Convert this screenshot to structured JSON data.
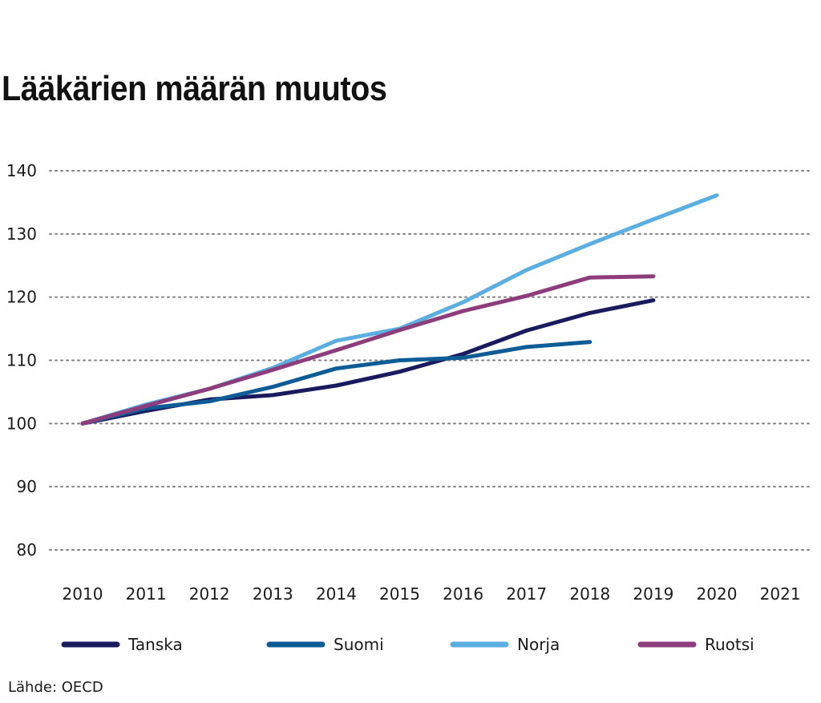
{
  "chart_data": {
    "type": "line",
    "title": "Lääkärien määrän muutos",
    "xlabel": "",
    "ylabel": "",
    "categories": [
      "2010",
      "2011",
      "2012",
      "2013",
      "2014",
      "2015",
      "2016",
      "2017",
      "2018",
      "2019",
      "2020",
      "2021"
    ],
    "ylim": [
      80,
      140
    ],
    "yticks": [
      80,
      90,
      100,
      110,
      120,
      130,
      140
    ],
    "grid": "horizontal dotted",
    "legend_position": "bottom",
    "series": [
      {
        "name": "Tanska",
        "color": "#1a1a5e",
        "values": [
          100,
          102.0,
          103.8,
          104.5,
          106.0,
          108.2,
          111.0,
          114.7,
          117.5,
          119.5,
          null,
          null
        ]
      },
      {
        "name": "Suomi",
        "color": "#0e5c96",
        "values": [
          100,
          102.4,
          103.5,
          105.8,
          108.7,
          110.0,
          110.4,
          112.1,
          112.9,
          null,
          null,
          null
        ]
      },
      {
        "name": "Norja",
        "color": "#5aaee0",
        "values": [
          100,
          103.0,
          105.5,
          108.8,
          113.1,
          115.0,
          119.2,
          124.3,
          128.4,
          132.3,
          136.1,
          null
        ]
      },
      {
        "name": "Ruotsi",
        "color": "#8e3d7c",
        "values": [
          100,
          102.8,
          105.5,
          108.5,
          111.6,
          114.8,
          117.8,
          120.2,
          123.1,
          123.3,
          null,
          null
        ]
      }
    ]
  },
  "source": "Lähde: OECD"
}
